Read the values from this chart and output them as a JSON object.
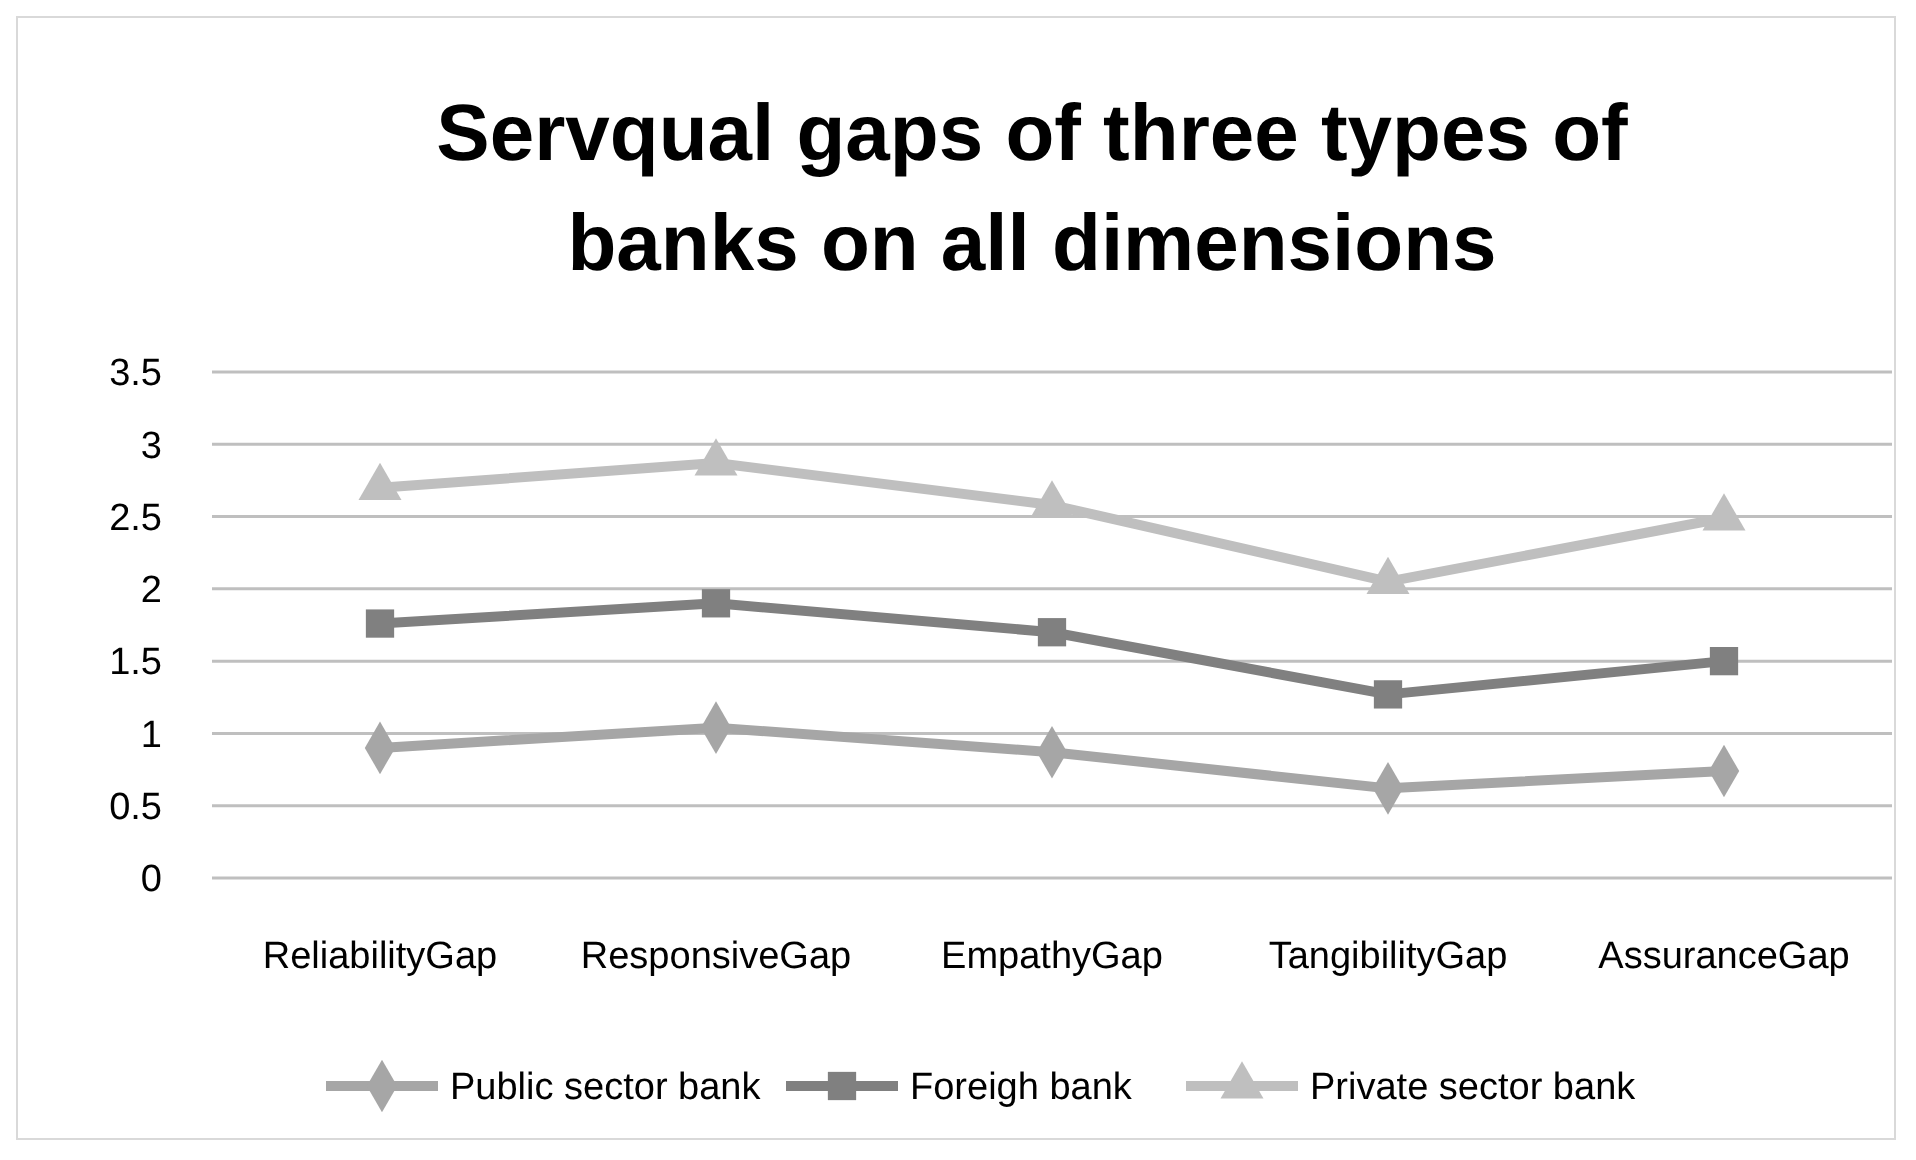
{
  "chart_data": {
    "type": "line",
    "title": "Servqual gaps of three types of banks on all dimensions",
    "categories": [
      "ReliabilityGap",
      "ResponsiveGap",
      "EmpathyGap",
      "TangibilityGap",
      "AssuranceGap"
    ],
    "series": [
      {
        "name": "Public sector bank",
        "color": "#a6a6a6",
        "marker": "diamond",
        "values": [
          0.9,
          1.04,
          0.87,
          0.62,
          0.74
        ]
      },
      {
        "name": "Foreigh bank",
        "color": "#808080",
        "marker": "square",
        "values": [
          1.76,
          1.9,
          1.7,
          1.27,
          1.5
        ]
      },
      {
        "name": "Private sector bank",
        "color": "#bfbfbf",
        "marker": "triangle",
        "values": [
          2.7,
          2.87,
          2.58,
          2.05,
          2.49
        ]
      }
    ],
    "ylim": [
      0,
      3.5
    ],
    "yticks": [
      0,
      0.5,
      1,
      1.5,
      2,
      2.5,
      3,
      3.5
    ],
    "grid": "y",
    "legend": "bottom"
  }
}
